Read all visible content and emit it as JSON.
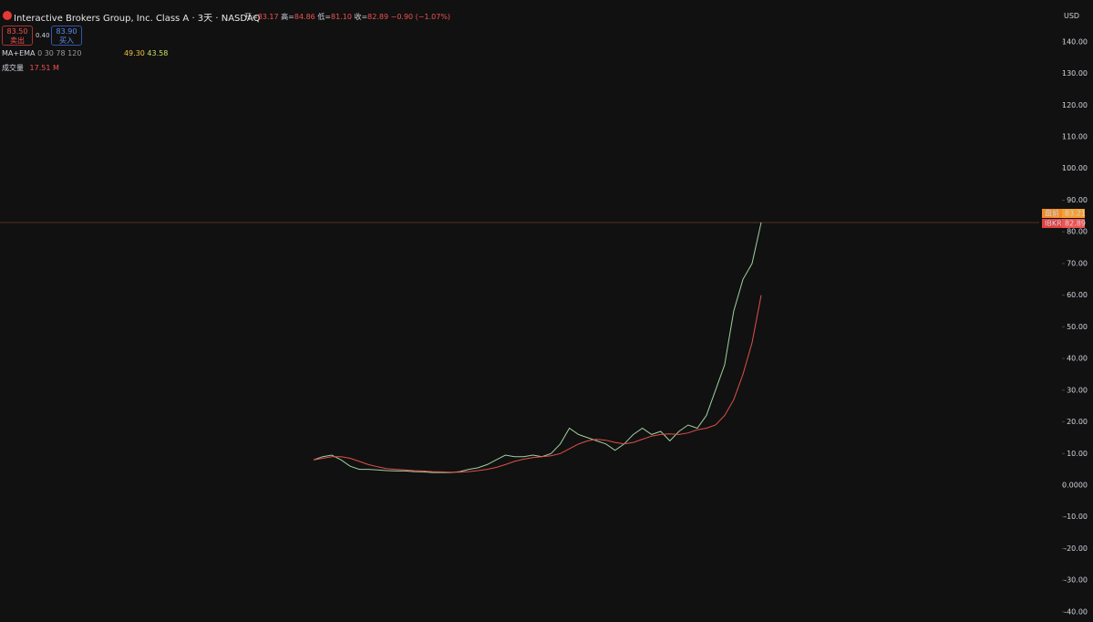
{
  "header": {
    "title": "Interactive Brokers Group, Inc. Class A · 3天 · NASDAQ",
    "open_label": "开=",
    "open": "83.17",
    "high_label": "高=",
    "high": "84.86",
    "low_label": "低=",
    "low": "81.10",
    "close_label": "收=",
    "close": "82.89",
    "change": "−0.90 (−1.07%)",
    "currency": "USD"
  },
  "trade": {
    "sell_price": "83.50",
    "sell_label": "卖出",
    "spread": "0.40",
    "buy_price": "83.90",
    "buy_label": "买入"
  },
  "indicators": {
    "ma_name": "MA+EMA",
    "ma_params": "0 30 78 120",
    "ma_value_1": "49.30",
    "ma_value_2": "43.58",
    "volume_name": "成交量",
    "volume_value": "17.51 M"
  },
  "price_tags": {
    "premarket_label": "盘前",
    "premarket_price": "83.21",
    "symbol_label": "IBKR",
    "symbol_price": "82.89"
  },
  "chart_data": {
    "type": "line",
    "ylim": [
      -43.2,
      153.2
    ],
    "yticks": [
      {
        "value": 140,
        "label": "140.00"
      },
      {
        "value": 130,
        "label": "130.00"
      },
      {
        "value": 120,
        "label": "120.00"
      },
      {
        "value": 110,
        "label": "110.00"
      },
      {
        "value": 100,
        "label": "100.00"
      },
      {
        "value": 90,
        "label": "90.00"
      },
      {
        "value": 80,
        "label": "80.00"
      },
      {
        "value": 70,
        "label": "70.00"
      },
      {
        "value": 60,
        "label": "60.00"
      },
      {
        "value": 50,
        "label": "50.00"
      },
      {
        "value": 40,
        "label": "40.00"
      },
      {
        "value": 30,
        "label": "30.00"
      },
      {
        "value": 20,
        "label": "20.00"
      },
      {
        "value": 10,
        "label": "10.00"
      },
      {
        "value": 0,
        "label": "0.0000"
      },
      {
        "value": -10,
        "label": "-10.00"
      },
      {
        "value": -20,
        "label": "-20.00"
      },
      {
        "value": -30,
        "label": "-30.00"
      },
      {
        "value": -40,
        "label": "-40.00"
      }
    ],
    "series": [
      {
        "color": "#9fd0a0",
        "values": [
          8,
          9,
          9.5,
          8,
          6,
          5,
          5,
          4.8,
          4.6,
          4.5,
          4.5,
          4.3,
          4.2,
          4,
          4,
          4,
          4.3,
          5,
          5.5,
          6.5,
          8,
          9.5,
          9,
          9,
          9.5,
          9,
          10,
          13,
          18,
          16,
          15,
          14,
          13,
          11,
          13,
          16,
          18,
          16,
          17,
          14,
          17,
          19,
          18,
          22,
          30,
          38,
          55,
          65,
          70,
          83
        ]
      },
      {
        "color": "#e0504a",
        "values": [
          8,
          8.5,
          9,
          9,
          8.5,
          7.5,
          6.5,
          5.8,
          5.2,
          5,
          4.8,
          4.6,
          4.5,
          4.3,
          4.2,
          4.1,
          4.1,
          4.3,
          4.6,
          5,
          5.6,
          6.5,
          7.5,
          8.2,
          8.7,
          9,
          9.3,
          10,
          11.5,
          13,
          14,
          14.5,
          14.2,
          13.5,
          13,
          13.5,
          14.5,
          15.5,
          16,
          16.2,
          16,
          16.5,
          17.5,
          18,
          19,
          22,
          27,
          35,
          45,
          60
        ]
      }
    ]
  }
}
